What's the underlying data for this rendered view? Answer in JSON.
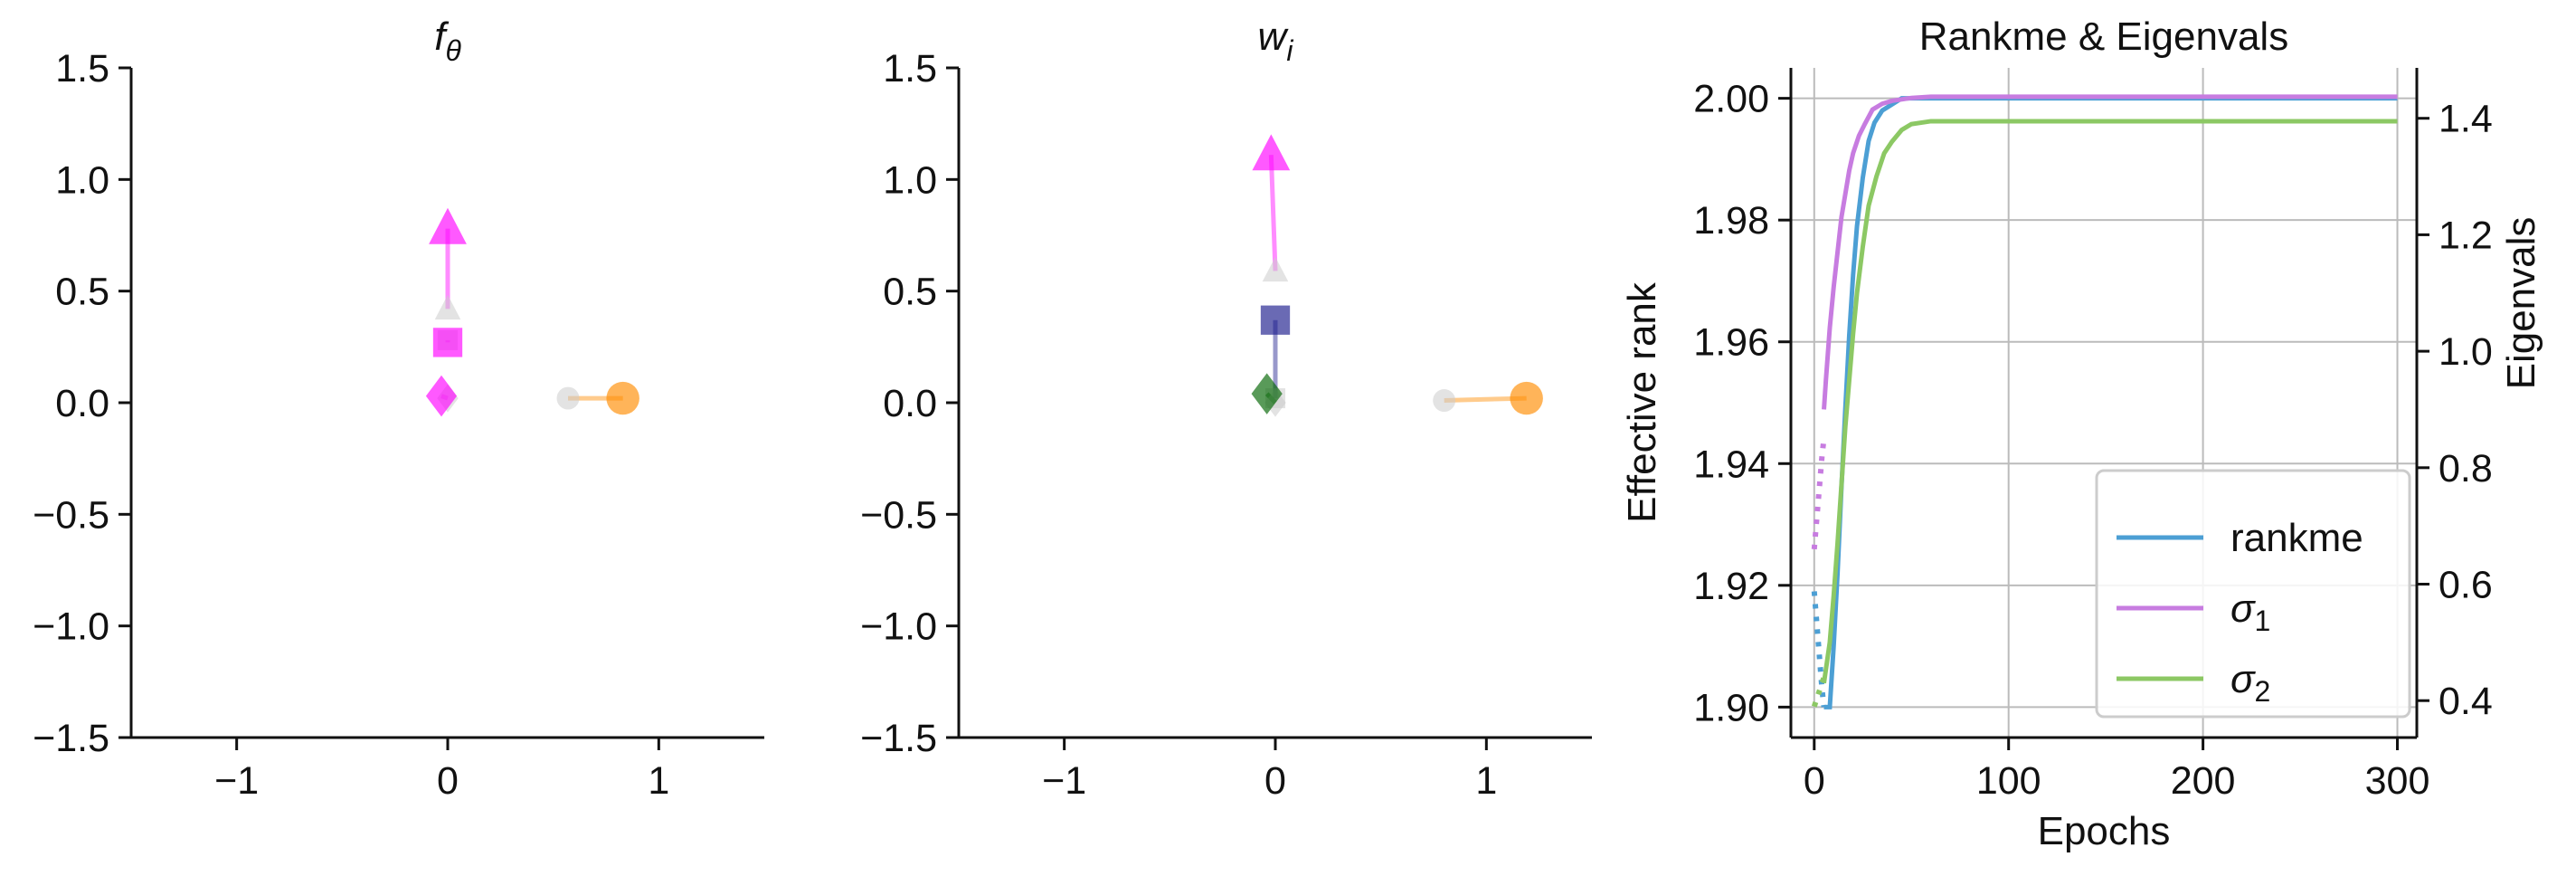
{
  "chart_data": [
    {
      "type": "scatter",
      "title": "f_θ",
      "title_html": "f",
      "title_sub": "θ",
      "xlim": [
        -1.5,
        1.5
      ],
      "ylim": [
        -1.5,
        1.5
      ],
      "xticks": [
        -1,
        0,
        1
      ],
      "yticks": [
        -1.5,
        -1.0,
        -0.5,
        0.0,
        0.5,
        1.0,
        1.5
      ],
      "xtick_labels": [
        "−1",
        "0",
        "1"
      ],
      "ytick_labels": [
        "−1.5",
        "−1.0",
        "−0.5",
        "0.0",
        "0.5",
        "1.0",
        "1.5"
      ],
      "grid": false,
      "points": [
        {
          "shape": "triangle",
          "color": "#ff00ff",
          "from": [
            0.0,
            0.42
          ],
          "to": [
            0.0,
            0.78
          ]
        },
        {
          "shape": "square",
          "color": "#ff00ff",
          "from": [
            0.0,
            0.28
          ],
          "to": [
            0.0,
            0.27
          ]
        },
        {
          "shape": "diamond",
          "color": "#ff00ff",
          "from": [
            0.0,
            0.02
          ],
          "to": [
            -0.03,
            0.03
          ]
        },
        {
          "shape": "circle",
          "color": "#ff8c00",
          "from": [
            0.57,
            0.02
          ],
          "to": [
            0.83,
            0.02
          ]
        }
      ]
    },
    {
      "type": "scatter",
      "title": "w_i",
      "title_html": "w",
      "title_sub": "i",
      "xlim": [
        -1.5,
        1.5
      ],
      "ylim": [
        -1.5,
        1.5
      ],
      "xticks": [
        -1,
        0,
        1
      ],
      "yticks": [
        -1.5,
        -1.0,
        -0.5,
        0.0,
        0.5,
        1.0,
        1.5
      ],
      "xtick_labels": [
        "−1",
        "0",
        "1"
      ],
      "ytick_labels": [
        "−1.5",
        "−1.0",
        "−0.5",
        "0.0",
        "0.5",
        "1.0",
        "1.5"
      ],
      "grid": false,
      "points": [
        {
          "shape": "triangle",
          "color": "#ff00ff",
          "from": [
            0.0,
            0.59
          ],
          "to": [
            -0.02,
            1.11
          ]
        },
        {
          "shape": "square",
          "color": "#1a1a8c",
          "from": [
            0.0,
            0.02
          ],
          "to": [
            0.0,
            0.37
          ]
        },
        {
          "shape": "diamond",
          "color": "#006400",
          "from": [
            0.0,
            0.0
          ],
          "to": [
            -0.04,
            0.04
          ]
        },
        {
          "shape": "circle",
          "color": "#ff8c00",
          "from": [
            0.8,
            0.01
          ],
          "to": [
            1.19,
            0.02
          ]
        }
      ]
    },
    {
      "type": "line",
      "title": "Rankme & Eigenvals",
      "xlabel": "Epochs",
      "ylabel": "Effective rank",
      "y2label": "Eigenvals",
      "xlim": [
        -12,
        310
      ],
      "ylim": [
        1.895,
        2.005
      ],
      "y2lim": [
        0.3366,
        1.4866
      ],
      "xticks": [
        0,
        100,
        200,
        300
      ],
      "xtick_labels": [
        "0",
        "100",
        "200",
        "300"
      ],
      "yticks": [
        1.9,
        1.92,
        1.94,
        1.96,
        1.98,
        2.0
      ],
      "ytick_labels": [
        "1.90",
        "1.92",
        "1.94",
        "1.96",
        "1.98",
        "2.00"
      ],
      "y2ticks": [
        0.4,
        0.6,
        0.8,
        1.0,
        1.2,
        1.4
      ],
      "y2tick_labels": [
        "0.4",
        "0.6",
        "0.8",
        "1.0",
        "1.2",
        "1.4"
      ],
      "grid": true,
      "legend_position": "lower-right",
      "series": [
        {
          "name": "rankme",
          "color": "#4c9fd4",
          "axis": "left",
          "dotted_x": [
            0,
            1,
            2,
            3,
            4,
            5
          ],
          "dotted_y": [
            1.919,
            1.915,
            1.911,
            1.907,
            1.903,
            1.9
          ],
          "x": [
            5,
            8,
            10,
            12,
            14,
            16,
            18,
            20,
            22,
            25,
            28,
            31,
            35,
            40,
            45,
            50,
            60,
            80,
            100,
            150,
            200,
            250,
            300
          ],
          "y": [
            1.9,
            1.9,
            1.91,
            1.922,
            1.936,
            1.949,
            1.961,
            1.971,
            1.979,
            1.987,
            1.993,
            1.996,
            1.998,
            1.999,
            2.0,
            2.0,
            2.0,
            2.0,
            2.0,
            2.0,
            2.0,
            2.0,
            2.0
          ]
        },
        {
          "name": "σ1",
          "label_base": "σ",
          "label_sub": "1",
          "color": "#c77ce0",
          "axis": "right",
          "dotted_x": [
            0,
            1,
            2,
            3,
            4,
            5
          ],
          "dotted_y": [
            0.66,
            0.7,
            0.74,
            0.78,
            0.82,
            0.85
          ],
          "x": [
            5,
            6,
            8,
            10,
            12,
            14,
            16,
            18,
            20,
            23,
            26,
            30,
            35,
            40,
            50,
            60,
            80,
            100,
            150,
            200,
            250,
            300
          ],
          "y": [
            0.9,
            0.95,
            1.04,
            1.11,
            1.17,
            1.23,
            1.27,
            1.31,
            1.34,
            1.37,
            1.39,
            1.415,
            1.425,
            1.43,
            1.435,
            1.437,
            1.437,
            1.437,
            1.437,
            1.437,
            1.437,
            1.437
          ]
        },
        {
          "name": "σ2",
          "label_base": "σ",
          "label_sub": "2",
          "color": "#8cc864",
          "axis": "right",
          "dotted_x": [
            0,
            1,
            2,
            3,
            4,
            5
          ],
          "dotted_y": [
            0.39,
            0.4,
            0.41,
            0.42,
            0.43,
            0.44
          ],
          "x": [
            5,
            8,
            10,
            12,
            14,
            16,
            18,
            20,
            22,
            25,
            28,
            32,
            36,
            40,
            45,
            50,
            60,
            80,
            100,
            150,
            200,
            250,
            300
          ],
          "y": [
            0.43,
            0.5,
            0.58,
            0.67,
            0.77,
            0.87,
            0.95,
            1.03,
            1.1,
            1.18,
            1.25,
            1.3,
            1.34,
            1.36,
            1.38,
            1.39,
            1.395,
            1.395,
            1.395,
            1.395,
            1.395,
            1.395,
            1.395
          ]
        }
      ]
    }
  ]
}
